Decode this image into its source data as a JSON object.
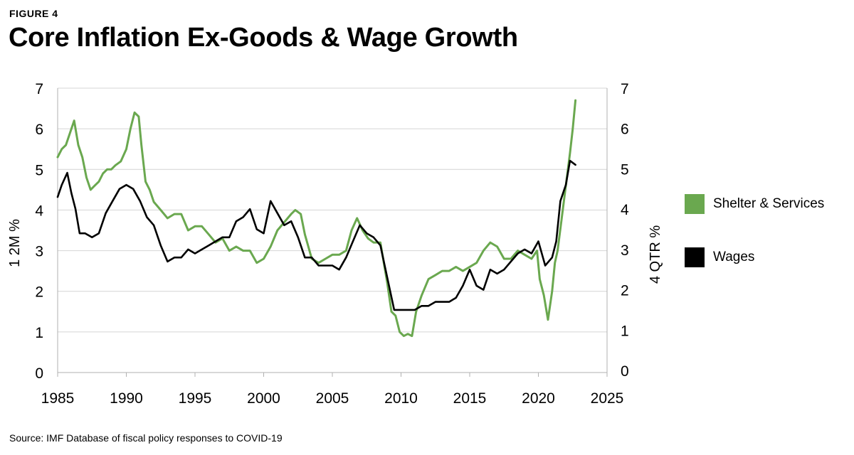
{
  "header": {
    "figure_label": "FIGURE 4",
    "title": "Core Inflation Ex-Goods & Wage Growth"
  },
  "footer": {
    "source": "Source: IMF Database of fiscal policy responses to COVID-19"
  },
  "colors": {
    "shelter": "#6aa84f",
    "wages": "#000000",
    "grid": "#d4d4d4",
    "axis": "#b0b0b0"
  },
  "legend": {
    "placement": "right",
    "items": [
      {
        "label": "Shelter & Services",
        "color": "#6aa84f"
      },
      {
        "label": "Wages",
        "color": "#000000"
      }
    ]
  },
  "chart_data": {
    "type": "line",
    "title": "Core Inflation Ex-Goods & Wage Growth",
    "xlabel": "",
    "ylabel": "1 2M %",
    "y2label": "4 QTR %",
    "xlim": [
      1985,
      2025
    ],
    "ylim": [
      0,
      7
    ],
    "y2lim": [
      0,
      7
    ],
    "x_ticks": [
      1985,
      1990,
      1995,
      2000,
      2005,
      2010,
      2015,
      2020,
      2025
    ],
    "y_ticks": [
      0,
      1,
      2,
      3,
      4,
      5,
      6,
      7
    ],
    "y2_ticks": [
      0,
      1,
      2,
      3,
      4,
      5,
      6,
      7
    ],
    "grid": true,
    "series": [
      {
        "name": "Shelter & Services",
        "axis": "left",
        "x": [
          1985.0,
          1985.3,
          1985.6,
          1985.9,
          1986.2,
          1986.5,
          1986.8,
          1987.1,
          1987.4,
          1987.7,
          1988.0,
          1988.3,
          1988.6,
          1988.9,
          1989.2,
          1989.6,
          1990.0,
          1990.3,
          1990.6,
          1990.9,
          1991.1,
          1991.4,
          1991.7,
          1992.0,
          1992.5,
          1993.0,
          1993.5,
          1994.0,
          1994.5,
          1995.0,
          1995.5,
          1996.0,
          1996.5,
          1997.0,
          1997.5,
          1998.0,
          1998.5,
          1999.0,
          1999.5,
          2000.0,
          2000.5,
          2001.0,
          2001.5,
          2002.0,
          2002.3,
          2002.7,
          2003.0,
          2003.5,
          2004.0,
          2004.5,
          2005.0,
          2005.5,
          2006.0,
          2006.4,
          2006.8,
          2007.2,
          2007.6,
          2008.0,
          2008.5,
          2009.0,
          2009.3,
          2009.6,
          2009.9,
          2010.2,
          2010.5,
          2010.8,
          2011.1,
          2011.5,
          2012.0,
          2012.5,
          2013.0,
          2013.5,
          2014.0,
          2014.5,
          2015.0,
          2015.5,
          2016.0,
          2016.5,
          2017.0,
          2017.5,
          2018.0,
          2018.5,
          2019.0,
          2019.5,
          2019.9,
          2020.1,
          2020.4,
          2020.7,
          2021.0,
          2021.2,
          2021.4,
          2021.7,
          2022.0,
          2022.3,
          2022.5,
          2022.7
        ],
        "values": [
          5.3,
          5.5,
          5.6,
          5.9,
          6.2,
          5.6,
          5.3,
          4.8,
          4.5,
          4.6,
          4.7,
          4.9,
          5.0,
          5.0,
          5.1,
          5.2,
          5.5,
          6.0,
          6.4,
          6.3,
          5.6,
          4.7,
          4.5,
          4.2,
          4.0,
          3.8,
          3.9,
          3.9,
          3.5,
          3.6,
          3.6,
          3.4,
          3.2,
          3.3,
          3.0,
          3.1,
          3.0,
          3.0,
          2.7,
          2.8,
          3.1,
          3.5,
          3.7,
          3.9,
          4.0,
          3.9,
          3.4,
          2.8,
          2.7,
          2.8,
          2.9,
          2.9,
          3.0,
          3.5,
          3.8,
          3.5,
          3.3,
          3.2,
          3.2,
          2.2,
          1.5,
          1.4,
          1.0,
          0.9,
          0.95,
          0.9,
          1.5,
          1.9,
          2.3,
          2.4,
          2.5,
          2.5,
          2.6,
          2.5,
          2.6,
          2.7,
          3.0,
          3.2,
          3.1,
          2.8,
          2.8,
          3.0,
          2.9,
          2.8,
          3.0,
          2.3,
          1.9,
          1.3,
          2.0,
          2.7,
          3.0,
          3.8,
          4.6,
          5.4,
          6.0,
          6.7
        ]
      },
      {
        "name": "Wages",
        "axis": "right",
        "x": [
          1985.0,
          1985.3,
          1985.7,
          1986.0,
          1986.3,
          1986.6,
          1987.0,
          1987.5,
          1988.0,
          1988.5,
          1989.0,
          1989.5,
          1990.0,
          1990.5,
          1991.0,
          1991.5,
          1992.0,
          1992.5,
          1993.0,
          1993.5,
          1994.0,
          1994.5,
          1995.0,
          1995.5,
          1996.0,
          1996.5,
          1997.0,
          1997.5,
          1998.0,
          1998.5,
          1999.0,
          1999.5,
          2000.0,
          2000.5,
          2001.0,
          2001.5,
          2002.0,
          2002.5,
          2003.0,
          2003.5,
          2004.0,
          2004.5,
          2005.0,
          2005.5,
          2006.0,
          2006.5,
          2007.0,
          2007.5,
          2008.0,
          2008.5,
          2009.0,
          2009.5,
          2010.0,
          2010.5,
          2011.0,
          2011.5,
          2012.0,
          2012.5,
          2013.0,
          2013.5,
          2014.0,
          2014.5,
          2015.0,
          2015.5,
          2016.0,
          2016.5,
          2017.0,
          2017.5,
          2018.0,
          2018.5,
          2019.0,
          2019.5,
          2020.0,
          2020.5,
          2021.0,
          2021.3,
          2021.6,
          2022.0,
          2022.3,
          2022.7
        ],
        "values": [
          4.3,
          4.6,
          4.9,
          4.4,
          4.0,
          3.4,
          3.4,
          3.3,
          3.4,
          3.9,
          4.2,
          4.5,
          4.6,
          4.5,
          4.2,
          3.8,
          3.6,
          3.1,
          2.7,
          2.8,
          2.8,
          3.0,
          2.9,
          3.0,
          3.1,
          3.2,
          3.3,
          3.3,
          3.7,
          3.8,
          4.0,
          3.5,
          3.4,
          4.2,
          3.9,
          3.6,
          3.7,
          3.3,
          2.8,
          2.8,
          2.6,
          2.6,
          2.6,
          2.5,
          2.8,
          3.2,
          3.6,
          3.4,
          3.3,
          3.1,
          2.3,
          1.5,
          1.5,
          1.5,
          1.5,
          1.6,
          1.6,
          1.7,
          1.7,
          1.7,
          1.8,
          2.1,
          2.5,
          2.1,
          2.0,
          2.5,
          2.4,
          2.5,
          2.7,
          2.9,
          3.0,
          2.9,
          3.2,
          2.6,
          2.8,
          3.2,
          4.2,
          4.6,
          5.2,
          5.1
        ]
      }
    ]
  }
}
